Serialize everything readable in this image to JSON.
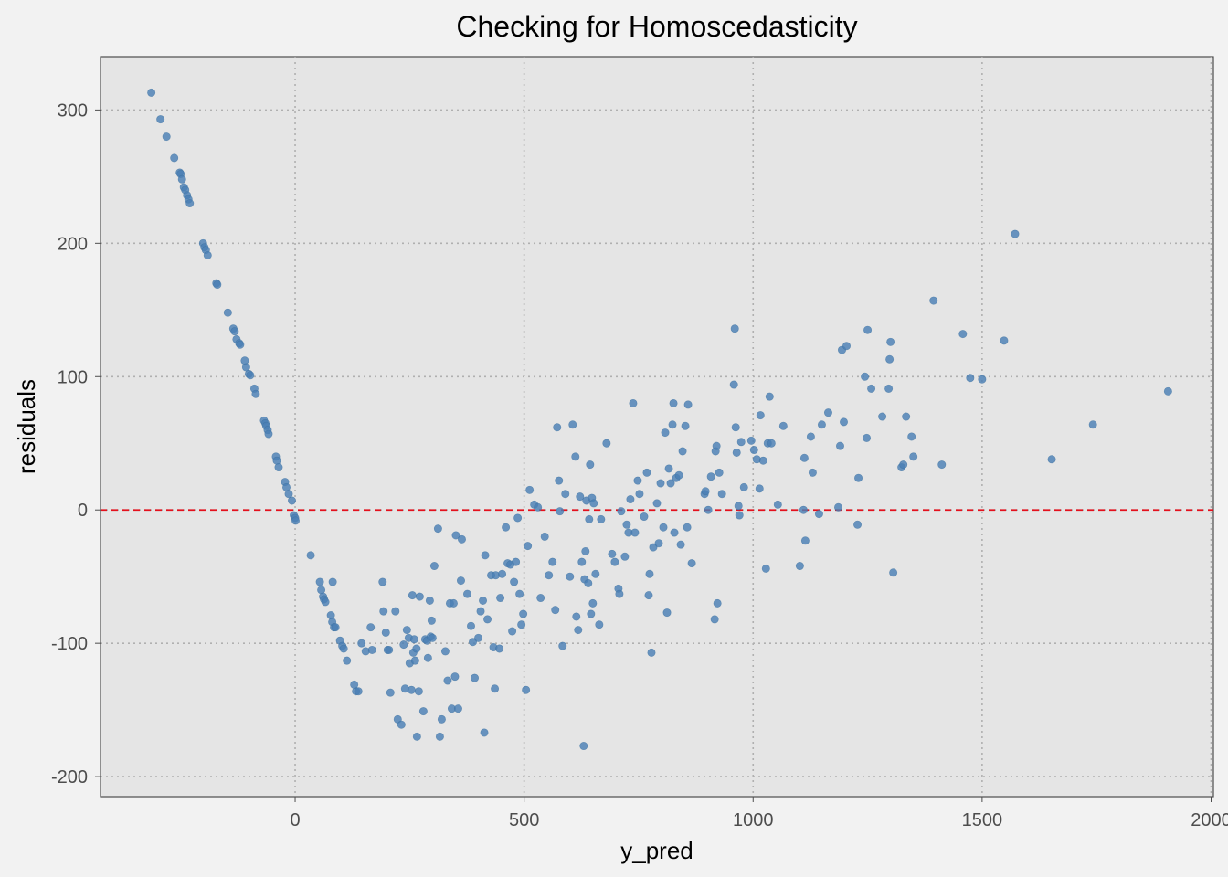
{
  "chart_data": {
    "type": "scatter",
    "title": "Checking for Homoscedasticity",
    "xlabel": "y_pred",
    "ylabel": "residuals",
    "xlim": [
      -425,
      2005
    ],
    "ylim": [
      -215,
      340
    ],
    "xticks": [
      0,
      500,
      1000,
      1500,
      2000
    ],
    "xtick_labels": [
      "0",
      "500",
      "1000",
      "1500",
      "2000"
    ],
    "yticks": [
      -200,
      -100,
      0,
      100,
      200,
      300
    ],
    "ytick_labels": [
      "-200",
      "-100",
      "0",
      "100",
      "200",
      "300"
    ],
    "grid": true,
    "grid_style": "dotted",
    "reference_line": {
      "y": 0,
      "color": "#e4101c",
      "style": "dashed"
    },
    "point_color": "#4a7fb5",
    "panel_background": "#e5e5e5",
    "page_background": "#f2f2f2",
    "points": [
      [
        -314,
        313
      ],
      [
        -294,
        293
      ],
      [
        -281,
        280
      ],
      [
        -264,
        264
      ],
      [
        -252,
        253
      ],
      [
        -250,
        252
      ],
      [
        -247,
        248
      ],
      [
        -243,
        242
      ],
      [
        -240,
        240
      ],
      [
        -236,
        236
      ],
      [
        -233,
        233
      ],
      [
        -230,
        230
      ],
      [
        -201,
        200
      ],
      [
        -198,
        197
      ],
      [
        -195,
        195
      ],
      [
        -191,
        191
      ],
      [
        -172,
        170
      ],
      [
        -170,
        169
      ],
      [
        -147,
        148
      ],
      [
        -135,
        136
      ],
      [
        -132,
        134
      ],
      [
        -128,
        128
      ],
      [
        -122,
        125
      ],
      [
        -120,
        124
      ],
      [
        -110,
        112
      ],
      [
        -107,
        107
      ],
      [
        -101,
        102
      ],
      [
        -98,
        101
      ],
      [
        -89,
        91
      ],
      [
        -86,
        87
      ],
      [
        -68,
        67
      ],
      [
        -65,
        65
      ],
      [
        -63,
        63
      ],
      [
        -60,
        60
      ],
      [
        -58,
        57
      ],
      [
        -42,
        40
      ],
      [
        -40,
        37
      ],
      [
        -36,
        32
      ],
      [
        -22,
        21
      ],
      [
        -19,
        17
      ],
      [
        -14,
        12
      ],
      [
        -7,
        7
      ],
      [
        -3,
        -4
      ],
      [
        0,
        -6
      ],
      [
        1,
        -8
      ],
      [
        34,
        -34
      ],
      [
        54,
        -54
      ],
      [
        57,
        -60
      ],
      [
        61,
        -65
      ],
      [
        63,
        -67
      ],
      [
        66,
        -69
      ],
      [
        78,
        -79
      ],
      [
        81,
        -84
      ],
      [
        85,
        -88
      ],
      [
        88,
        -88
      ],
      [
        82,
        -54
      ],
      [
        98,
        -98
      ],
      [
        103,
        -102
      ],
      [
        106,
        -104
      ],
      [
        113,
        -113
      ],
      [
        129,
        -131
      ],
      [
        133,
        -136
      ],
      [
        138,
        -136
      ],
      [
        145,
        -100
      ],
      [
        154,
        -106
      ],
      [
        165,
        -88
      ],
      [
        168,
        -105
      ],
      [
        191,
        -54
      ],
      [
        193,
        -76
      ],
      [
        198,
        -92
      ],
      [
        202,
        -105
      ],
      [
        205,
        -105
      ],
      [
        208,
        -137
      ],
      [
        219,
        -76
      ],
      [
        224,
        -157
      ],
      [
        232,
        -161
      ],
      [
        237,
        -101
      ],
      [
        240,
        -134
      ],
      [
        244,
        -90
      ],
      [
        248,
        -96
      ],
      [
        250,
        -115
      ],
      [
        254,
        -135
      ],
      [
        256,
        -64
      ],
      [
        258,
        -107
      ],
      [
        260,
        -97
      ],
      [
        262,
        -113
      ],
      [
        265,
        -104
      ],
      [
        266,
        -170
      ],
      [
        270,
        -136
      ],
      [
        272,
        -65
      ],
      [
        280,
        -151
      ],
      [
        284,
        -97
      ],
      [
        288,
        -98
      ],
      [
        290,
        -111
      ],
      [
        294,
        -68
      ],
      [
        296,
        -95
      ],
      [
        298,
        -83
      ],
      [
        300,
        -96
      ],
      [
        304,
        -42
      ],
      [
        312,
        -14
      ],
      [
        316,
        -170
      ],
      [
        320,
        -157
      ],
      [
        328,
        -106
      ],
      [
        333,
        -128
      ],
      [
        338,
        -70
      ],
      [
        342,
        -149
      ],
      [
        346,
        -70
      ],
      [
        349,
        -125
      ],
      [
        351,
        -19
      ],
      [
        356,
        -149
      ],
      [
        362,
        -53
      ],
      [
        364,
        -22
      ],
      [
        376,
        -63
      ],
      [
        384,
        -87
      ],
      [
        388,
        -99
      ],
      [
        392,
        -126
      ],
      [
        400,
        -96
      ],
      [
        405,
        -76
      ],
      [
        410,
        -68
      ],
      [
        413,
        -167
      ],
      [
        415,
        -34
      ],
      [
        420,
        -82
      ],
      [
        428,
        -49
      ],
      [
        433,
        -103
      ],
      [
        436,
        -134
      ],
      [
        438,
        -49
      ],
      [
        446,
        -104
      ],
      [
        448,
        -66
      ],
      [
        452,
        -48
      ],
      [
        460,
        -13
      ],
      [
        464,
        -40
      ],
      [
        470,
        -41
      ],
      [
        474,
        -91
      ],
      [
        478,
        -54
      ],
      [
        482,
        -39
      ],
      [
        486,
        -6
      ],
      [
        490,
        -63
      ],
      [
        494,
        -86
      ],
      [
        498,
        -78
      ],
      [
        504,
        -135
      ],
      [
        508,
        -27
      ],
      [
        512,
        15
      ],
      [
        522,
        4
      ],
      [
        530,
        2
      ],
      [
        536,
        -66
      ],
      [
        545,
        -20
      ],
      [
        554,
        -49
      ],
      [
        562,
        -39
      ],
      [
        568,
        -75
      ],
      [
        572,
        62
      ],
      [
        576,
        22
      ],
      [
        578,
        -1
      ],
      [
        584,
        -102
      ],
      [
        590,
        12
      ],
      [
        600,
        -50
      ],
      [
        606,
        64
      ],
      [
        612,
        40
      ],
      [
        614,
        -80
      ],
      [
        618,
        -90
      ],
      [
        622,
        10
      ],
      [
        626,
        -39
      ],
      [
        630,
        -177
      ],
      [
        632,
        -52
      ],
      [
        634,
        -31
      ],
      [
        636,
        7
      ],
      [
        640,
        -55
      ],
      [
        642,
        -7
      ],
      [
        644,
        34
      ],
      [
        646,
        -78
      ],
      [
        648,
        9
      ],
      [
        650,
        -70
      ],
      [
        652,
        5
      ],
      [
        656,
        -48
      ],
      [
        664,
        -86
      ],
      [
        668,
        -7
      ],
      [
        680,
        50
      ],
      [
        692,
        -33
      ],
      [
        698,
        -39
      ],
      [
        706,
        -59
      ],
      [
        708,
        -63
      ],
      [
        712,
        -1
      ],
      [
        720,
        -35
      ],
      [
        724,
        -11
      ],
      [
        728,
        -17
      ],
      [
        732,
        8
      ],
      [
        738,
        80
      ],
      [
        742,
        -17
      ],
      [
        748,
        22
      ],
      [
        752,
        12
      ],
      [
        762,
        -5
      ],
      [
        768,
        28
      ],
      [
        772,
        -64
      ],
      [
        774,
        -48
      ],
      [
        778,
        -107
      ],
      [
        782,
        -28
      ],
      [
        790,
        5
      ],
      [
        794,
        -25
      ],
      [
        798,
        20
      ],
      [
        804,
        -13
      ],
      [
        808,
        58
      ],
      [
        812,
        -77
      ],
      [
        816,
        31
      ],
      [
        820,
        20
      ],
      [
        824,
        64
      ],
      [
        826,
        80
      ],
      [
        828,
        -17
      ],
      [
        832,
        24
      ],
      [
        838,
        26
      ],
      [
        842,
        -26
      ],
      [
        846,
        44
      ],
      [
        852,
        63
      ],
      [
        856,
        -13
      ],
      [
        858,
        79
      ],
      [
        866,
        -40
      ],
      [
        894,
        12
      ],
      [
        896,
        14
      ],
      [
        902,
        0
      ],
      [
        908,
        25
      ],
      [
        916,
        -82
      ],
      [
        918,
        44
      ],
      [
        920,
        48
      ],
      [
        922,
        -70
      ],
      [
        926,
        28
      ],
      [
        932,
        12
      ],
      [
        958,
        94
      ],
      [
        960,
        136
      ],
      [
        962,
        62
      ],
      [
        964,
        43
      ],
      [
        968,
        3
      ],
      [
        970,
        -4
      ],
      [
        974,
        51
      ],
      [
        980,
        17
      ],
      [
        996,
        52
      ],
      [
        1002,
        45
      ],
      [
        1008,
        38
      ],
      [
        1014,
        16
      ],
      [
        1016,
        71
      ],
      [
        1022,
        37
      ],
      [
        1028,
        -44
      ],
      [
        1032,
        50
      ],
      [
        1036,
        85
      ],
      [
        1040,
        50
      ],
      [
        1054,
        4
      ],
      [
        1066,
        63
      ],
      [
        1102,
        -42
      ],
      [
        1110,
        0
      ],
      [
        1112,
        39
      ],
      [
        1114,
        -23
      ],
      [
        1126,
        55
      ],
      [
        1130,
        28
      ],
      [
        1144,
        -3
      ],
      [
        1150,
        64
      ],
      [
        1164,
        73
      ],
      [
        1186,
        2
      ],
      [
        1190,
        48
      ],
      [
        1194,
        120
      ],
      [
        1198,
        66
      ],
      [
        1204,
        123
      ],
      [
        1228,
        -11
      ],
      [
        1230,
        24
      ],
      [
        1244,
        100
      ],
      [
        1248,
        54
      ],
      [
        1250,
        135
      ],
      [
        1258,
        91
      ],
      [
        1282,
        70
      ],
      [
        1296,
        91
      ],
      [
        1298,
        113
      ],
      [
        1300,
        126
      ],
      [
        1306,
        -47
      ],
      [
        1324,
        32
      ],
      [
        1328,
        34
      ],
      [
        1334,
        70
      ],
      [
        1346,
        55
      ],
      [
        1350,
        40
      ],
      [
        1394,
        157
      ],
      [
        1412,
        34
      ],
      [
        1458,
        132
      ],
      [
        1474,
        99
      ],
      [
        1500,
        98
      ],
      [
        1548,
        127
      ],
      [
        1572,
        207
      ],
      [
        1652,
        38
      ],
      [
        1742,
        64
      ],
      [
        1906,
        89
      ]
    ]
  }
}
